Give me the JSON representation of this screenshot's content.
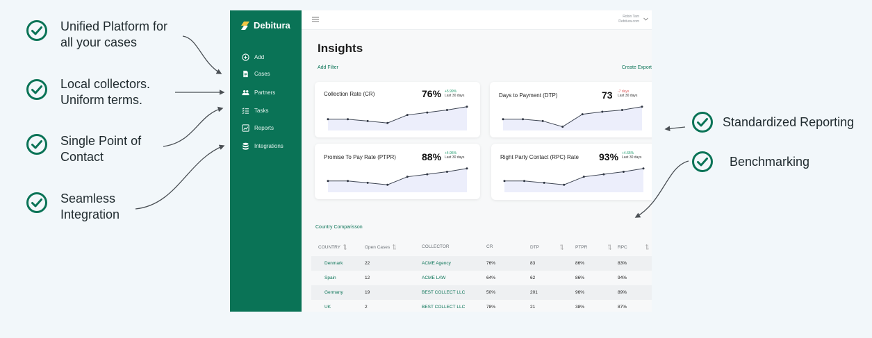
{
  "features_left": [
    {
      "line1": "Unified Platform for",
      "line2": "all your cases"
    },
    {
      "line1": "Local collectors.",
      "line2": "Uniform terms."
    },
    {
      "line1": "Single Point of",
      "line2": "Contact"
    },
    {
      "line1": "Seamless",
      "line2": "Integration"
    }
  ],
  "features_right": [
    {
      "label": "Standardized Reporting"
    },
    {
      "label": "Benchmarking"
    }
  ],
  "app": {
    "brand": "Debitura",
    "brand_color": "#0a7356",
    "nav": [
      {
        "label": "Add",
        "icon": "plus-circle-icon"
      },
      {
        "label": "Cases",
        "icon": "document-icon"
      },
      {
        "label": "Partners",
        "icon": "people-icon"
      },
      {
        "label": "Tasks",
        "icon": "checklist-icon"
      },
      {
        "label": "Reports",
        "icon": "chart-icon"
      },
      {
        "label": "Integrations",
        "icon": "database-icon"
      }
    ],
    "user": {
      "name": "Robin Tam",
      "company": "Debitura.com"
    },
    "page_title": "Insights",
    "add_filter": "Add Filter",
    "create_export": "Create Export",
    "kpis": [
      {
        "label": "Collection Rate (CR)",
        "value": "76%",
        "delta": "+5.99%",
        "delta_sign": "pos",
        "period": "Last 30 days",
        "series": [
          0.45,
          0.45,
          0.38,
          0.3,
          0.62,
          0.72,
          0.82,
          0.95
        ]
      },
      {
        "label": "Days to Payment (DTP)",
        "value": "73",
        "delta": "-7 days",
        "delta_sign": "neg",
        "period": "Last 30 days",
        "series": [
          0.45,
          0.45,
          0.38,
          0.15,
          0.65,
          0.75,
          0.82,
          0.95
        ]
      },
      {
        "label": "Promise To Pay Rate (PTPR)",
        "value": "88%",
        "delta": "+4.95%",
        "delta_sign": "pos",
        "period": "Last 30 days",
        "series": [
          0.45,
          0.45,
          0.38,
          0.3,
          0.62,
          0.72,
          0.82,
          0.95
        ]
      },
      {
        "label": "Right Party Contact (RPC) Rate",
        "value": "93%",
        "delta": "+4.65%",
        "delta_sign": "pos",
        "period": "Last 30 days",
        "series": [
          0.45,
          0.45,
          0.38,
          0.3,
          0.62,
          0.72,
          0.82,
          0.95
        ]
      }
    ],
    "country_section": "Country Comparisson",
    "table": {
      "headers": [
        "COUNTRY",
        "Open Cases",
        "COLLECTOR",
        "CR",
        "DTP",
        "PTPR",
        "RPC"
      ],
      "rows": [
        [
          "Denmark",
          "22",
          "ACME Agency",
          "76%",
          "83",
          "86%",
          "83%"
        ],
        [
          "Spain",
          "12",
          "ACME LAW",
          "64%",
          "62",
          "86%",
          "94%"
        ],
        [
          "Germany",
          "19",
          "BEST COLLECT LLC",
          "50%",
          "201",
          "96%",
          "89%"
        ],
        [
          "UK",
          "2",
          "BEST COLLECT LLC",
          "78%",
          "21",
          "38%",
          "87%"
        ]
      ]
    }
  }
}
